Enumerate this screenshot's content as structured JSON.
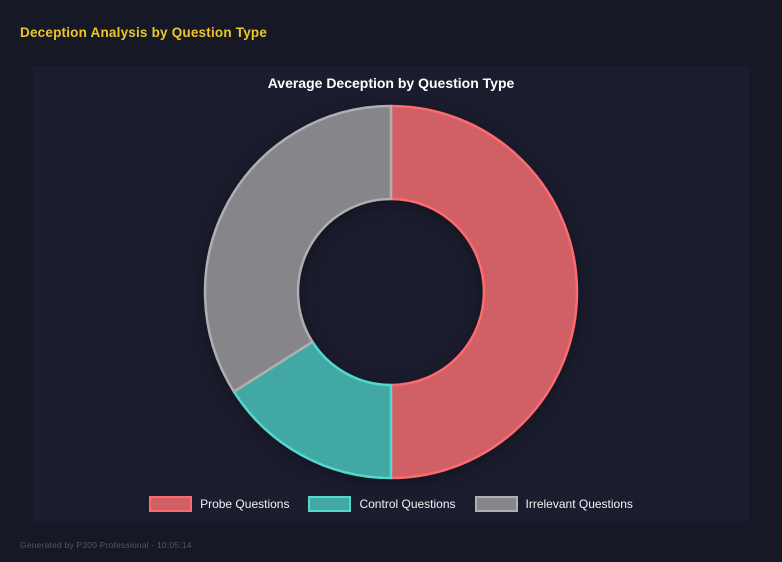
{
  "page": {
    "title": "Deception Analysis by Question Type",
    "footer": "Generated by P300 Professional - 10:05:14"
  },
  "chart_data": {
    "type": "pie",
    "variant": "doughnut",
    "title": "Average Deception by Question Type",
    "categories": [
      "Probe Questions",
      "Control Questions",
      "Irrelevant Questions"
    ],
    "values": [
      50,
      16,
      34
    ],
    "unit": "% share (estimated from arc angles)",
    "start_angle_deg": 0,
    "direction": "clockwise",
    "cutout_ratio": 0.5,
    "legend_position": "bottom",
    "fill_colors": [
      "#d15f66",
      "#41a8a3",
      "#85858a"
    ],
    "border_colors": [
      "#fc6b72",
      "#52d8cf",
      "#aeaeb4"
    ]
  },
  "colors": {
    "page_background": "#161925",
    "panel_background": "#1b1d2e",
    "header_title_text": "#eec62a",
    "chart_title_text": "#ffffff",
    "legend_text": "#f2f2f4",
    "footer_text": "#525769"
  }
}
